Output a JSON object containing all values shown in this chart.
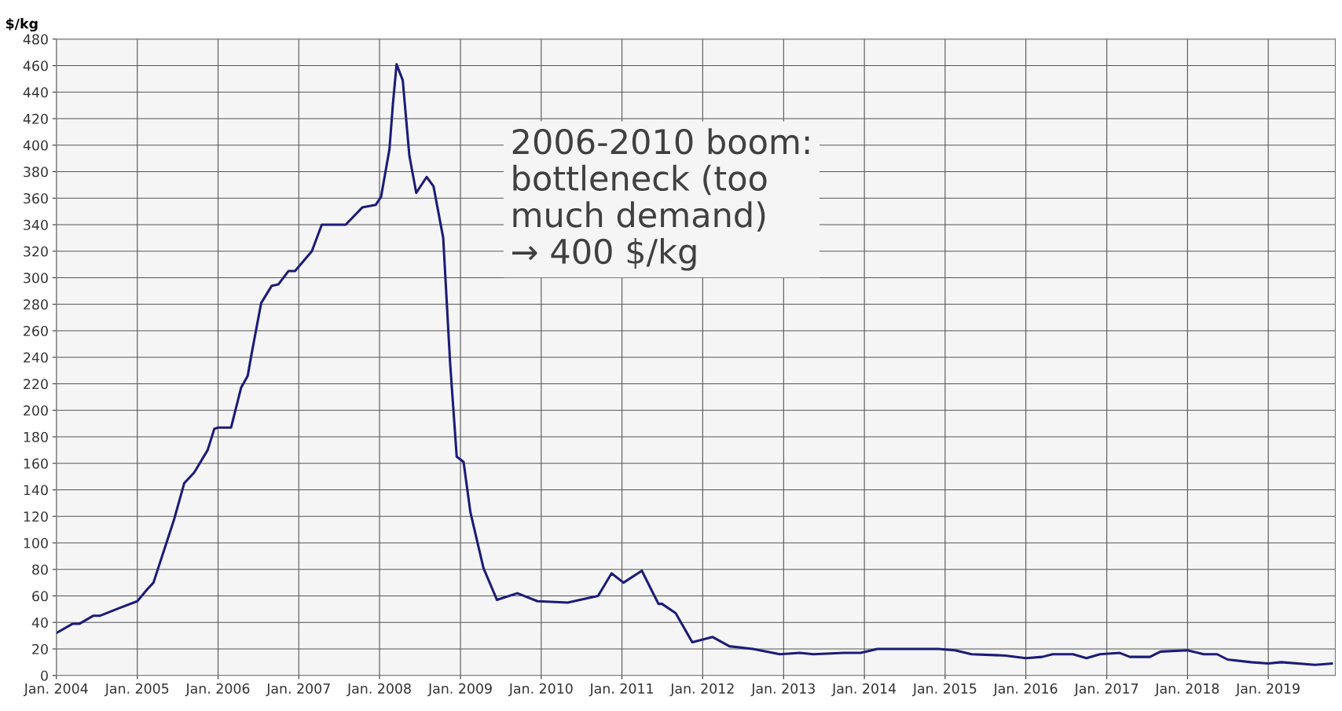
{
  "chart_data": {
    "type": "line",
    "ylabel": "$/kg",
    "annotations": [
      "2006-2010 boom:\nbottleneck (too\nmuch demand)\n→ 400 $/kg"
    ],
    "x": [
      "2004-01-01",
      "2004-03-15",
      "2004-04-15",
      "2004-06-15",
      "2004-07-15",
      "2004-10-15",
      "2005-01-01",
      "2005-02-15",
      "2005-03-15",
      "2005-06-15",
      "2005-08-01",
      "2005-09-15",
      "2005-11-15",
      "2005-12-15",
      "2006-01-01",
      "2006-03-01",
      "2006-04-15",
      "2006-05-15",
      "2006-06-01",
      "2006-07-15",
      "2006-09-01",
      "2006-10-01",
      "2006-11-15",
      "2006-12-15",
      "2007-03-01",
      "2007-04-15",
      "2007-08-01",
      "2007-10-15",
      "2007-12-15",
      "2008-01-08",
      "2008-02-15",
      "2008-03-01",
      "2008-03-18",
      "2008-04-15",
      "2008-05-15",
      "2008-06-15",
      "2008-08-01",
      "2008-09-01",
      "2008-10-15",
      "2008-11-15",
      "2008-12-15",
      "2009-01-15",
      "2009-02-15",
      "2009-04-15",
      "2009-06-15",
      "2009-09-15",
      "2009-12-15",
      "2010-05-01",
      "2010-09-15",
      "2010-11-15",
      "2011-01-08",
      "2011-04-01",
      "2011-06-15",
      "2011-07-01",
      "2011-09-01",
      "2011-11-15",
      "2012-02-15",
      "2012-05-01",
      "2012-08-15",
      "2012-12-15",
      "2013-03-15",
      "2013-05-15",
      "2013-10-01",
      "2013-12-15",
      "2014-03-01",
      "2014-12-01",
      "2015-02-15",
      "2015-05-01",
      "2015-10-01",
      "2016-01-01",
      "2016-03-15",
      "2016-05-01",
      "2016-08-01",
      "2016-10-01",
      "2016-12-01",
      "2017-03-01",
      "2017-04-15",
      "2017-07-15",
      "2017-09-01",
      "2018-01-01",
      "2018-03-15",
      "2018-05-15",
      "2018-07-01",
      "2018-10-15",
      "2019-01-01",
      "2019-03-01",
      "2019-08-01",
      "2019-10-15"
    ],
    "series": [
      {
        "color": "#1c1c78",
        "values": [
          32,
          39,
          39,
          45,
          45,
          51,
          56,
          65,
          70,
          117,
          145,
          153,
          170,
          186,
          187,
          187,
          217,
          226,
          242,
          281,
          294,
          295,
          305,
          305,
          320,
          340,
          340,
          353,
          355,
          361,
          397,
          430,
          461,
          449,
          392,
          364,
          376,
          369,
          330,
          236,
          165,
          161,
          123,
          81,
          57,
          62,
          56,
          55,
          60,
          77,
          70,
          79,
          54,
          54,
          47,
          25,
          29,
          22,
          20,
          16,
          17,
          16,
          17,
          17,
          20,
          20,
          19,
          16,
          15,
          13,
          14,
          16,
          16,
          13,
          16,
          17,
          14,
          14,
          18,
          19,
          16,
          16,
          12,
          10,
          9,
          10,
          8,
          9
        ]
      }
    ],
    "xlim": [
      "2004-01-01",
      "2019-10-31"
    ],
    "xticks": [
      {
        "value": "2004-01-01",
        "label": "Jan. 2004"
      },
      {
        "value": "2005-01-01",
        "label": "Jan. 2005"
      },
      {
        "value": "2006-01-01",
        "label": "Jan. 2006"
      },
      {
        "value": "2007-01-01",
        "label": "Jan. 2007"
      },
      {
        "value": "2008-01-01",
        "label": "Jan. 2008"
      },
      {
        "value": "2009-01-01",
        "label": "Jan. 2009"
      },
      {
        "value": "2010-01-01",
        "label": "Jan. 2010"
      },
      {
        "value": "2011-01-01",
        "label": "Jan. 2011"
      },
      {
        "value": "2012-01-01",
        "label": "Jan. 2012"
      },
      {
        "value": "2013-01-01",
        "label": "Jan. 2013"
      },
      {
        "value": "2014-01-01",
        "label": "Jan. 2014"
      },
      {
        "value": "2015-01-01",
        "label": "Jan. 2015"
      },
      {
        "value": "2016-01-01",
        "label": "Jan. 2016"
      },
      {
        "value": "2017-01-01",
        "label": "Jan. 2017"
      },
      {
        "value": "2018-01-01",
        "label": "Jan. 2018"
      },
      {
        "value": "2019-01-01",
        "label": "Jan. 2019"
      }
    ],
    "ylim": [
      0,
      480
    ],
    "yticks": [
      0,
      20,
      40,
      60,
      80,
      100,
      120,
      140,
      160,
      180,
      200,
      220,
      240,
      260,
      280,
      300,
      320,
      340,
      360,
      380,
      400,
      420,
      440,
      460,
      480
    ],
    "grid": true,
    "marker": "none",
    "line_style": "solid"
  }
}
